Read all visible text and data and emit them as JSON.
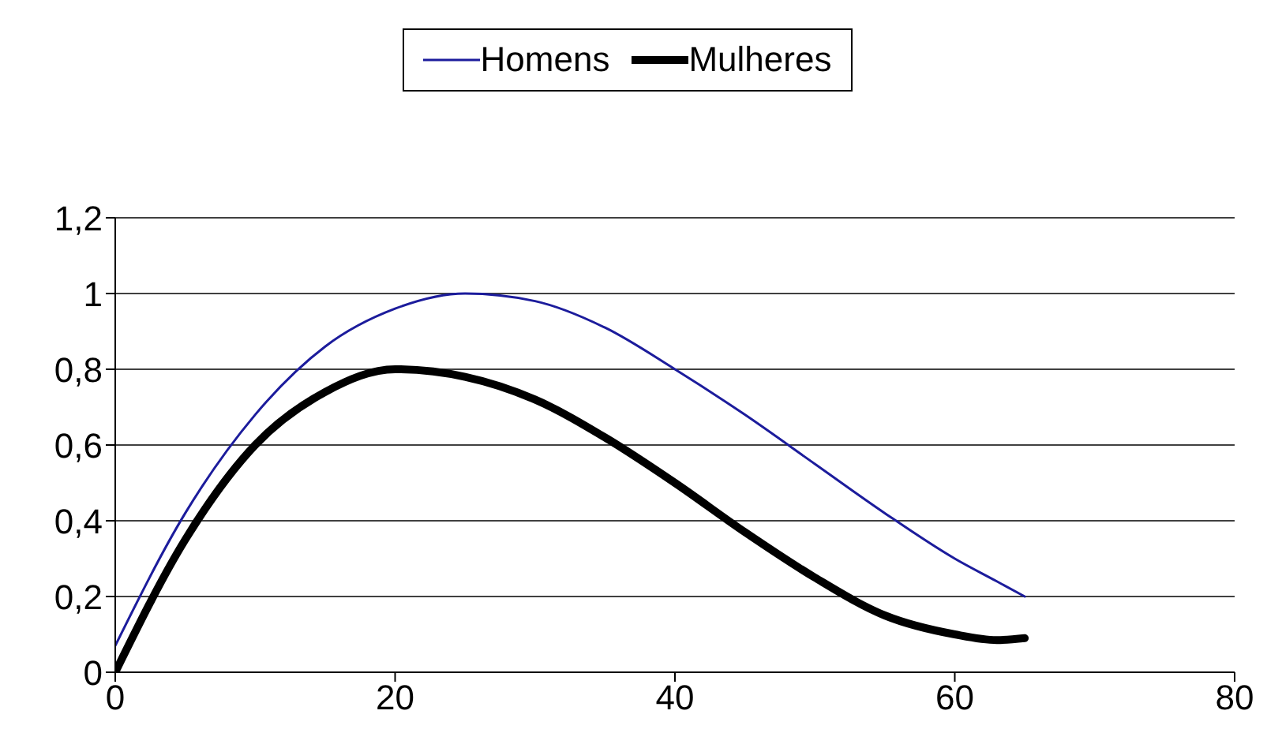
{
  "chart_data": {
    "type": "line",
    "x": [
      0,
      5,
      10,
      15,
      20,
      25,
      30,
      35,
      40,
      45,
      50,
      55,
      60,
      63,
      65
    ],
    "series": [
      {
        "name": "Homens",
        "color": "#1c1c9c",
        "values": [
          0.07,
          0.42,
          0.68,
          0.86,
          0.96,
          1.0,
          0.98,
          0.91,
          0.8,
          0.68,
          0.55,
          0.42,
          0.3,
          0.24,
          0.2
        ]
      },
      {
        "name": "Mulheres",
        "color": "#000000",
        "values": [
          0.0,
          0.35,
          0.6,
          0.74,
          0.8,
          0.78,
          0.72,
          0.62,
          0.5,
          0.37,
          0.25,
          0.15,
          0.1,
          0.085,
          0.09
        ]
      }
    ],
    "xlim": [
      0,
      80
    ],
    "xticks": [
      0,
      20,
      40,
      60,
      80
    ],
    "ylim": [
      0,
      1.2
    ],
    "yticks": [
      0,
      {
        "value": 0.2,
        "label": "0,2"
      },
      {
        "value": 0.4,
        "label": "0,4"
      },
      {
        "value": 0.6,
        "label": "0,6"
      },
      {
        "value": 0.8,
        "label": "0,8"
      },
      1,
      {
        "value": 1.2,
        "label": "1,2"
      }
    ],
    "grid": "y",
    "legend": "top",
    "marker": "none",
    "line_style": "solid"
  }
}
